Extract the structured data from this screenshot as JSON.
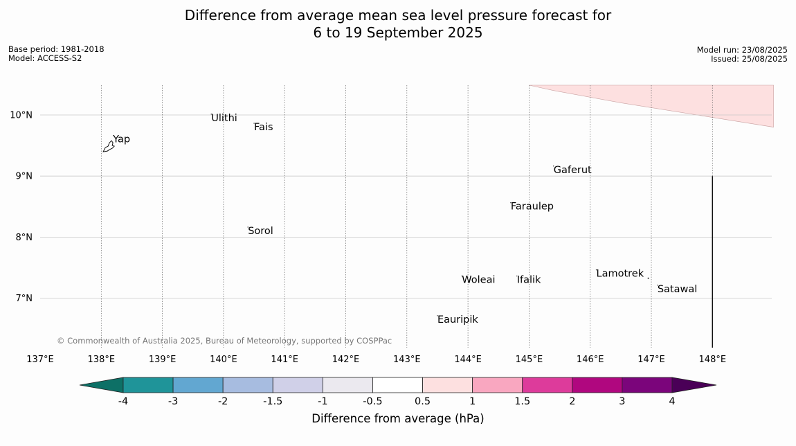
{
  "header": {
    "title_line1": "Difference from average mean sea level pressure forecast for",
    "title_line2": "6 to 19 September 2025",
    "base_period": "Base period: 1981-2018",
    "model": "Model: ACCESS-S2",
    "model_run": "Model run: 23/08/2025",
    "issued": "Issued: 25/08/2025"
  },
  "map": {
    "lon_range": [
      137,
      149
    ],
    "lat_range": [
      6.2,
      10.5
    ],
    "lon_ticks": [
      137,
      138,
      139,
      140,
      141,
      142,
      143,
      144,
      145,
      146,
      147,
      148
    ],
    "lon_tick_labels": [
      "137°E",
      "138°E",
      "139°E",
      "140°E",
      "141°E",
      "142°E",
      "143°E",
      "144°E",
      "145°E",
      "146°E",
      "147°E",
      "148°E"
    ],
    "lat_ticks": [
      7,
      8,
      9,
      10
    ],
    "lat_tick_labels": [
      "7°N",
      "8°N",
      "9°N",
      "10°N"
    ],
    "places": [
      {
        "name": "Ulithi",
        "lon": 139.8,
        "lat": 9.9
      },
      {
        "name": "Fais",
        "lon": 140.5,
        "lat": 9.75
      },
      {
        "name": "Yap",
        "lon": 138.1,
        "lat": 9.55
      },
      {
        "name": "Gaferut",
        "lon": 145.4,
        "lat": 9.05
      },
      {
        "name": "Faraulep",
        "lon": 144.7,
        "lat": 8.45
      },
      {
        "name": "Sorol",
        "lon": 140.4,
        "lat": 8.05
      },
      {
        "name": "Lamotrek",
        "lon": 146.1,
        "lat": 7.35
      },
      {
        "name": "Woleai",
        "lon": 143.9,
        "lat": 7.25
      },
      {
        "name": "Ifalik",
        "lon": 144.8,
        "lat": 7.25
      },
      {
        "name": "Satawal",
        "lon": 147.1,
        "lat": 7.1
      },
      {
        "name": "Eauripik",
        "lon": 143.5,
        "lat": 6.6
      }
    ],
    "anomaly_region": {
      "range": "0.5 to 1",
      "color": "#fde0e0",
      "polygon_lonlat": [
        [
          145.0,
          10.5
        ],
        [
          149.0,
          10.5
        ],
        [
          149.0,
          9.8
        ],
        [
          146.5,
          10.2
        ],
        [
          145.4,
          10.4
        ]
      ]
    },
    "boundary_line_lon": 148.0,
    "copyright": "© Commonwealth of Australia 2025, Bureau of Meteorology, supported by COSPPac"
  },
  "colorbar": {
    "title": "Difference from average (hPa)",
    "labels": [
      "-4",
      "-3",
      "-2",
      "-1.5",
      "-1",
      "-0.5",
      "0.5",
      "1",
      "1.5",
      "2",
      "3",
      "4"
    ],
    "colors": [
      "#0d7066",
      "#1f9499",
      "#62a7d1",
      "#a7bce0",
      "#d0d0e8",
      "#ebe9ef",
      "#ffffff",
      "#fde0e0",
      "#f9a7c0",
      "#dd3b9b",
      "#b0077f",
      "#7b057b",
      "#4a0057"
    ]
  }
}
